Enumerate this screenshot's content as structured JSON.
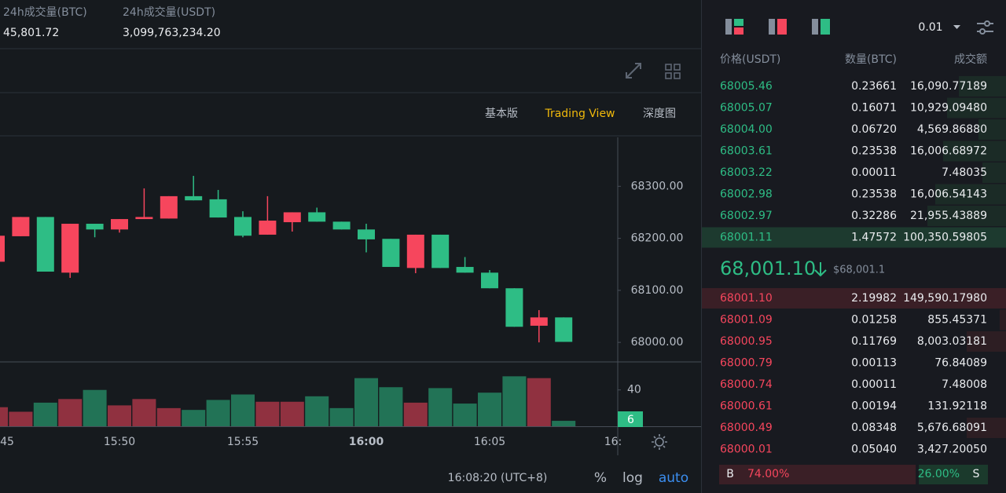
{
  "header": {
    "stats": [
      {
        "label": "24h成交量(BTC)",
        "value": "45,801.72"
      },
      {
        "label": "24h成交量(USDT)",
        "value": "3,099,763,234.20"
      }
    ]
  },
  "chart_tabs": [
    "基本版",
    "Trading View",
    "深度图"
  ],
  "chart_data": {
    "type": "candlestick",
    "open": [
      68155,
      68204,
      68241,
      68134,
      68228,
      68217,
      68237,
      68238,
      68281,
      68275,
      68241,
      68207,
      68231,
      68250,
      68232,
      68217,
      68199,
      68143,
      68207,
      68145,
      68134,
      68104,
      68032,
      68048
    ],
    "high": [
      68205,
      68241,
      68241,
      68228,
      68228,
      68237,
      68296,
      68281,
      68320,
      68293,
      68252,
      68281,
      68250,
      68259,
      68232,
      68228,
      68199,
      68207,
      68207,
      68164,
      68139,
      68104,
      68062,
      68048
    ],
    "low": [
      68155,
      68204,
      68136,
      68124,
      68202,
      68211,
      68237,
      68238,
      68273,
      68240,
      68202,
      68207,
      68213,
      68232,
      68217,
      68173,
      68145,
      68133,
      68143,
      68134,
      68104,
      68030,
      68000,
      68001
    ],
    "close": [
      68205,
      68241,
      68136,
      68228,
      68217,
      68237,
      68241,
      68281,
      68273,
      68240,
      68205,
      68234,
      68250,
      68232,
      68217,
      68198,
      68145,
      68207,
      68143,
      68134,
      68104,
      68030,
      68048,
      68001
    ],
    "volume": [
      21,
      16,
      26,
      30,
      40,
      23,
      30,
      20,
      18,
      29,
      35,
      27,
      27,
      33,
      20,
      53,
      43,
      26,
      42,
      25,
      37,
      55,
      53,
      6
    ],
    "ylim": [
      67964,
      68394
    ],
    "yticks": [
      {
        "value": 68300,
        "label": "68300.00"
      },
      {
        "value": 68200,
        "label": "68200.00"
      },
      {
        "value": 68100,
        "label": "68100.00"
      },
      {
        "value": 68000,
        "label": "68000.00"
      }
    ],
    "volume_ylim": [
      0,
      70
    ],
    "volume_yticks": [
      40
    ],
    "xticks": [
      "45",
      "15:50",
      "15:55",
      "16:00",
      "16:05",
      "16:"
    ],
    "up_color": "#f6465d",
    "down_color": "#2ebd85"
  },
  "time_display": "16:08:20 (UTC+8)",
  "scale_buttons": [
    "%",
    "log",
    "auto"
  ],
  "order_book": {
    "precision": "0.01",
    "columns": [
      "价格(USDT)",
      "数量(BTC)",
      "成交额"
    ],
    "asks": [
      [
        "68005.46",
        "0.23661",
        "16,090.77189"
      ],
      [
        "68005.07",
        "0.16071",
        "10,929.09480"
      ],
      [
        "68004.00",
        "0.06720",
        "4,569.86880"
      ],
      [
        "68003.61",
        "0.23538",
        "16,006.68972"
      ],
      [
        "68003.22",
        "0.00011",
        "7.48035"
      ],
      [
        "68002.98",
        "0.23538",
        "16,006.54143"
      ],
      [
        "68002.97",
        "0.32286",
        "21,955.43889"
      ],
      [
        "68001.11",
        "1.47572",
        "100,350.59805"
      ]
    ],
    "last_price": "68,001.10",
    "last_price_usd": "$68,001.1",
    "bids": [
      [
        "68001.10",
        "2.19982",
        "149,590.17980"
      ],
      [
        "68001.09",
        "0.01258",
        "855.45371"
      ],
      [
        "68000.95",
        "0.11769",
        "8,003.03181"
      ],
      [
        "68000.79",
        "0.00113",
        "76.84089"
      ],
      [
        "68000.74",
        "0.00011",
        "7.48008"
      ],
      [
        "68000.61",
        "0.00194",
        "131.92118"
      ],
      [
        "68000.49",
        "0.08348",
        "5,676.68091"
      ],
      [
        "68000.01",
        "0.05040",
        "3,427.20050"
      ]
    ],
    "ratio": {
      "buy_label": "B",
      "buy": {
        "value": 74,
        "label": "74.00%"
      },
      "sell": {
        "value": 26,
        "label": "26.00%"
      },
      "sell_label": "S"
    }
  }
}
